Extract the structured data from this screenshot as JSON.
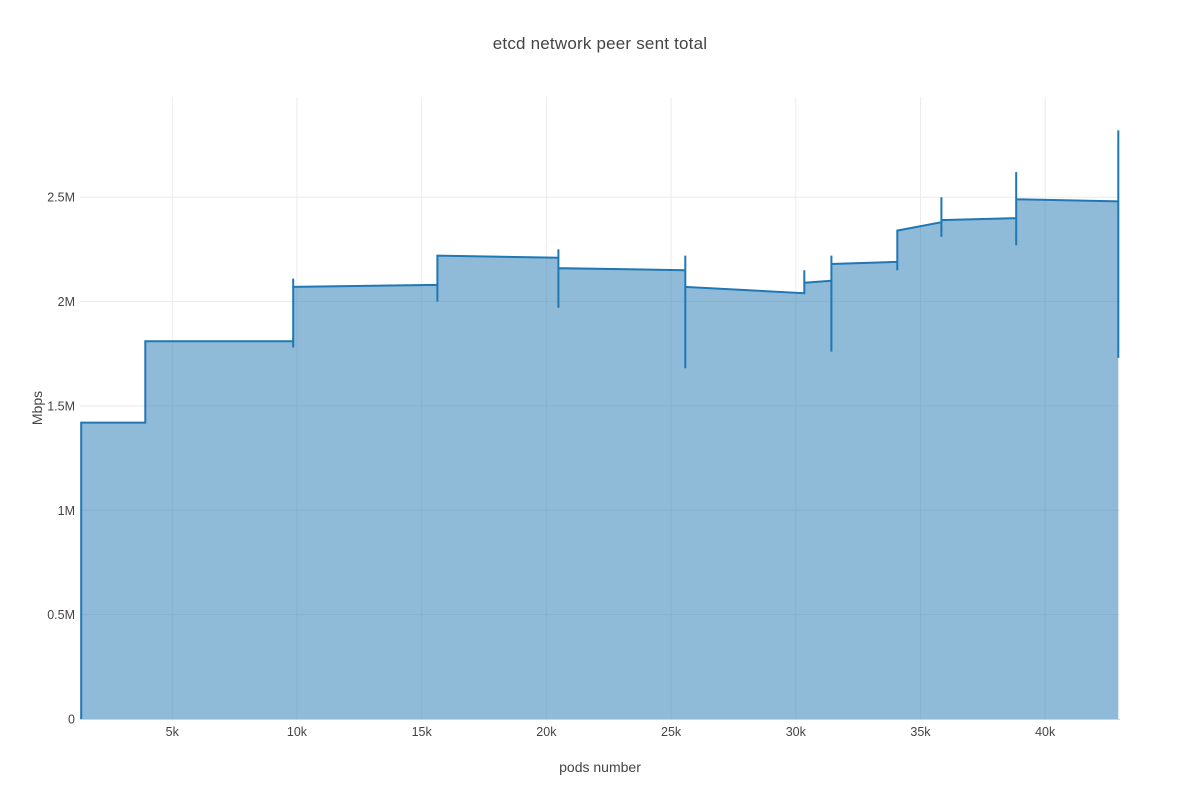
{
  "chart_data": {
    "type": "area",
    "title": "etcd network peer sent total",
    "xlabel": "pods number",
    "ylabel": "Mbps",
    "grid": true,
    "legend": false,
    "xlim": [
      1300,
      43000
    ],
    "ylim_mbps": [
      0,
      2980000
    ],
    "x_tick_values": [
      5000,
      10000,
      15000,
      20000,
      25000,
      30000,
      35000,
      40000
    ],
    "x_tick_labels": [
      "5k",
      "10k",
      "15k",
      "20k",
      "25k",
      "30k",
      "35k",
      "40k"
    ],
    "y_tick_values": [
      0,
      500000,
      1000000,
      1500000,
      2000000,
      2500000
    ],
    "y_tick_labels": [
      "0",
      "0.5M",
      "1M",
      "1.5M",
      "2M",
      "2.5M"
    ],
    "series": [
      {
        "name": "etcd network peer sent total",
        "points_pods_mbps": [
          [
            1350,
            0
          ],
          [
            1350,
            1420000
          ],
          [
            3920,
            1420000
          ],
          [
            3920,
            1810000
          ],
          [
            9850,
            1810000
          ],
          [
            9850,
            2110000
          ],
          [
            9850,
            1780000
          ],
          [
            9850,
            2070000
          ],
          [
            15630,
            2080000
          ],
          [
            15630,
            2000000
          ],
          [
            15630,
            2220000
          ],
          [
            20480,
            2210000
          ],
          [
            20480,
            2250000
          ],
          [
            20480,
            1970000
          ],
          [
            20480,
            2160000
          ],
          [
            25570,
            2150000
          ],
          [
            25570,
            2220000
          ],
          [
            25570,
            1680000
          ],
          [
            25570,
            2070000
          ],
          [
            30340,
            2040000
          ],
          [
            30340,
            2150000
          ],
          [
            30340,
            2090000
          ],
          [
            31430,
            2100000
          ],
          [
            31430,
            2220000
          ],
          [
            31430,
            1760000
          ],
          [
            31430,
            2180000
          ],
          [
            34070,
            2190000
          ],
          [
            34070,
            2150000
          ],
          [
            34070,
            2340000
          ],
          [
            35840,
            2380000
          ],
          [
            35840,
            2500000
          ],
          [
            35840,
            2310000
          ],
          [
            35840,
            2390000
          ],
          [
            38840,
            2400000
          ],
          [
            38840,
            2620000
          ],
          [
            38840,
            2270000
          ],
          [
            38840,
            2490000
          ],
          [
            42930,
            2480000
          ],
          [
            42930,
            2820000
          ],
          [
            42930,
            1730000
          ]
        ]
      }
    ],
    "colors": {
      "line": "#1f77b4",
      "fill": "rgba(31,119,180,0.5)",
      "grid": "#ececec",
      "axis_line": "#d4d4d4",
      "text": "#444444"
    }
  }
}
